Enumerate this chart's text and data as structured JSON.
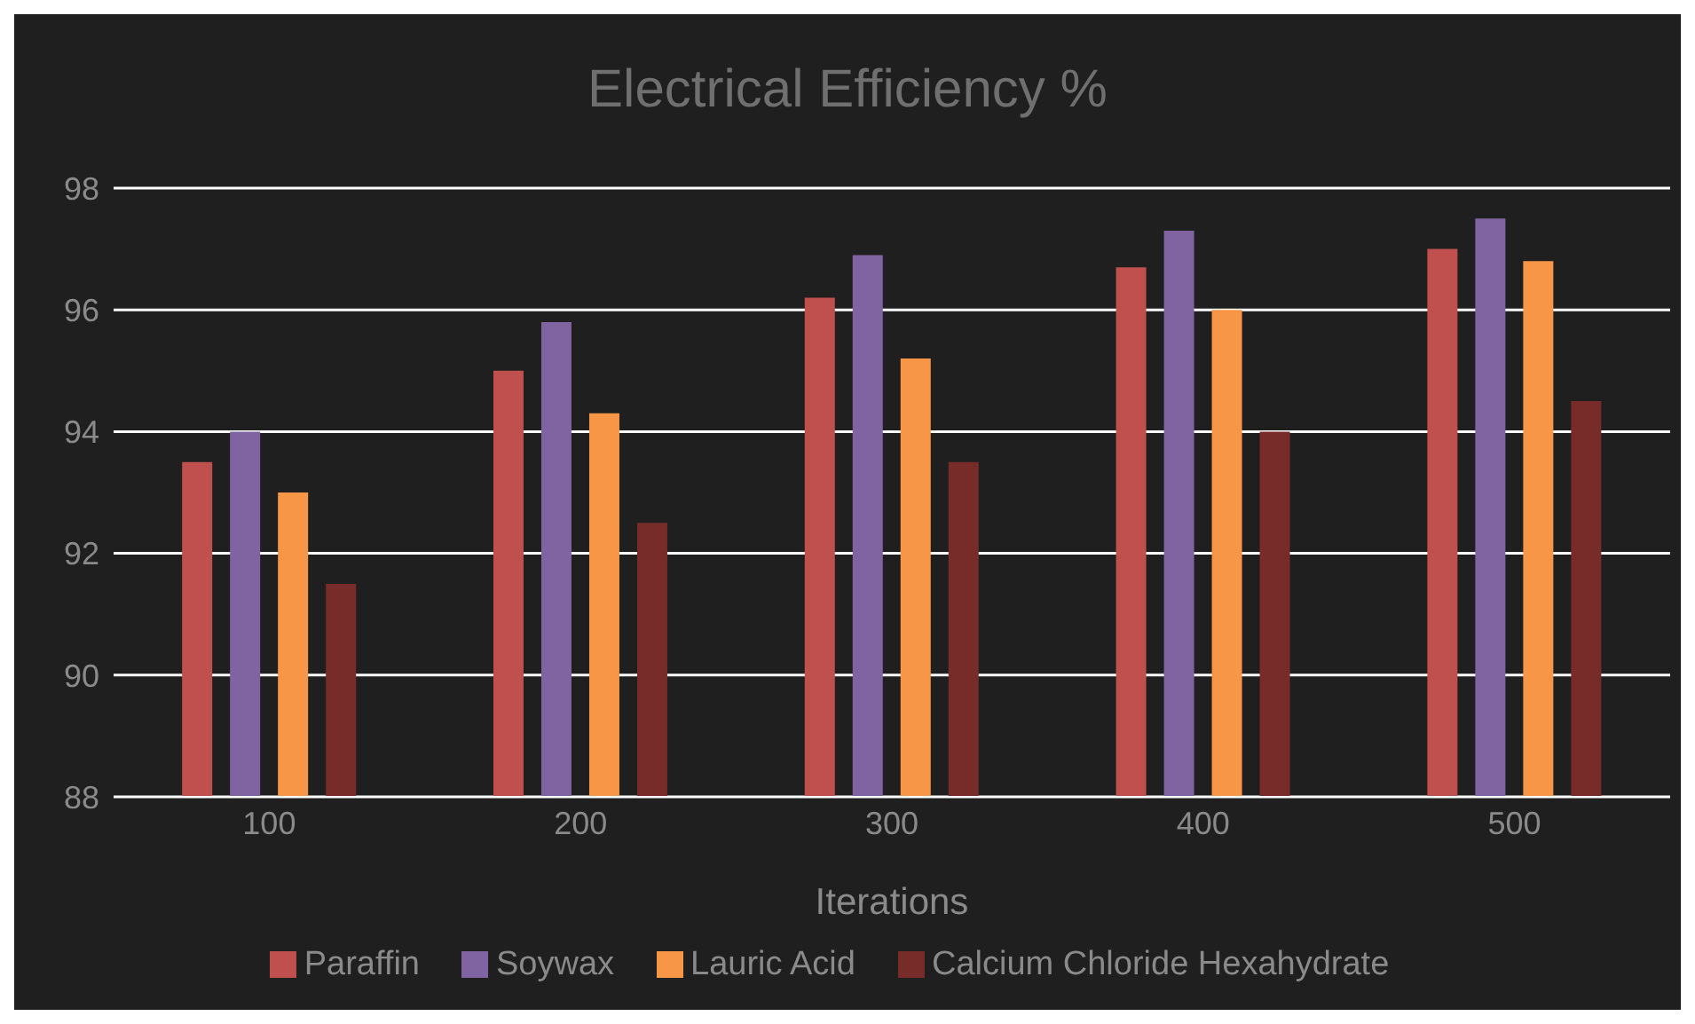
{
  "chart_data": {
    "type": "bar",
    "title": "Electrical Efficiency %",
    "xlabel": "Iterations",
    "categories": [
      "100",
      "200",
      "300",
      "400",
      "500"
    ],
    "series": [
      {
        "name": "Paraffin",
        "color": "#c0504d",
        "values": [
          93.5,
          95,
          96.2,
          96.7,
          97
        ]
      },
      {
        "name": "Soywax",
        "color": "#8064a2",
        "values": [
          94,
          95.8,
          96.9,
          97.3,
          97.5
        ]
      },
      {
        "name": "Lauric Acid",
        "color": "#f79646",
        "values": [
          93,
          94.3,
          95.2,
          96,
          96.8
        ]
      },
      {
        "name": "Calcium Chloride Hexahydrate",
        "color": "#772c2a",
        "values": [
          91.5,
          92.5,
          93.5,
          94,
          94.5
        ]
      }
    ],
    "ylim": [
      88,
      98
    ],
    "yticks": [
      88,
      90,
      92,
      94,
      96,
      98
    ],
    "grid": "y",
    "legend": "bottom"
  }
}
